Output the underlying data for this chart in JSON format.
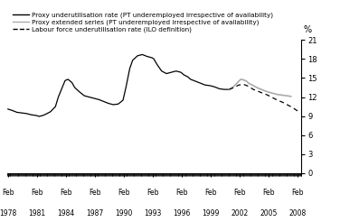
{
  "title": "",
  "ylabel": "%",
  "ylim": [
    0,
    21
  ],
  "yticks": [
    0,
    3,
    6,
    9,
    12,
    15,
    18,
    21
  ],
  "xlim": [
    1978.0,
    2008.5
  ],
  "xtick_years": [
    1978,
    1981,
    1984,
    1987,
    1990,
    1993,
    1996,
    1999,
    2002,
    2005,
    2008
  ],
  "background_color": "#ffffff",
  "legend": [
    {
      "label": "Proxy underutilisation rate (PT underemployed irrespective of availability)",
      "color": "#000000",
      "linestyle": "-"
    },
    {
      "label": "Proxy extended series (PT underemployed irrespective of availability)",
      "color": "#aaaaaa",
      "linestyle": "-"
    },
    {
      "label": "Labour force underutilisation rate (ILO definition)",
      "color": "#000000",
      "linestyle": "--"
    }
  ],
  "series1": {
    "color": "#000000",
    "linestyle": "-",
    "linewidth": 0.9,
    "x": [
      1978.08,
      1978.5,
      1979.0,
      1979.5,
      1980.0,
      1980.5,
      1981.0,
      1981.3,
      1981.7,
      1982.0,
      1982.5,
      1983.0,
      1983.3,
      1983.7,
      1984.0,
      1984.3,
      1984.7,
      1985.0,
      1985.5,
      1986.0,
      1986.5,
      1987.0,
      1987.5,
      1988.0,
      1988.5,
      1989.0,
      1989.5,
      1990.0,
      1990.3,
      1990.7,
      1991.0,
      1991.5,
      1992.0,
      1992.5,
      1993.0,
      1993.2,
      1993.5,
      1994.0,
      1994.5,
      1995.0,
      1995.5,
      1996.0,
      1996.3,
      1996.7,
      1997.0,
      1997.5,
      1998.0,
      1998.5,
      1999.0,
      1999.5,
      2000.0,
      2000.5,
      2001.0
    ],
    "y": [
      10.1,
      9.9,
      9.6,
      9.5,
      9.4,
      9.2,
      9.1,
      8.95,
      9.1,
      9.3,
      9.7,
      10.5,
      12.0,
      13.5,
      14.6,
      14.8,
      14.3,
      13.5,
      12.8,
      12.2,
      12.0,
      11.8,
      11.6,
      11.3,
      11.0,
      10.8,
      10.9,
      11.5,
      13.5,
      16.5,
      17.8,
      18.5,
      18.7,
      18.4,
      18.2,
      18.0,
      17.2,
      16.1,
      15.7,
      15.9,
      16.1,
      15.9,
      15.5,
      15.2,
      14.8,
      14.5,
      14.2,
      13.9,
      13.8,
      13.6,
      13.3,
      13.2,
      13.2
    ]
  },
  "series2": {
    "color": "#aaaaaa",
    "linestyle": "-",
    "linewidth": 1.2,
    "x": [
      2001.0,
      2001.5,
      2002.0,
      2002.2,
      2002.5,
      2002.8,
      2003.0,
      2003.5,
      2004.0,
      2004.5,
      2005.0,
      2005.5,
      2006.0,
      2006.5,
      2007.0,
      2007.4
    ],
    "y": [
      13.2,
      13.7,
      14.5,
      14.8,
      14.7,
      14.5,
      14.2,
      13.8,
      13.4,
      13.1,
      12.8,
      12.6,
      12.4,
      12.3,
      12.2,
      12.1
    ]
  },
  "series3": {
    "color": "#000000",
    "linestyle": "--",
    "linewidth": 0.9,
    "x": [
      2001.0,
      2001.5,
      2002.0,
      2002.5,
      2003.0,
      2003.5,
      2004.0,
      2004.5,
      2005.0,
      2005.5,
      2006.0,
      2006.5,
      2007.0,
      2007.5,
      2008.0,
      2008.35
    ],
    "y": [
      13.2,
      13.5,
      13.9,
      14.0,
      13.7,
      13.2,
      12.9,
      12.6,
      12.3,
      11.9,
      11.5,
      11.2,
      10.8,
      10.4,
      9.9,
      9.6
    ]
  }
}
